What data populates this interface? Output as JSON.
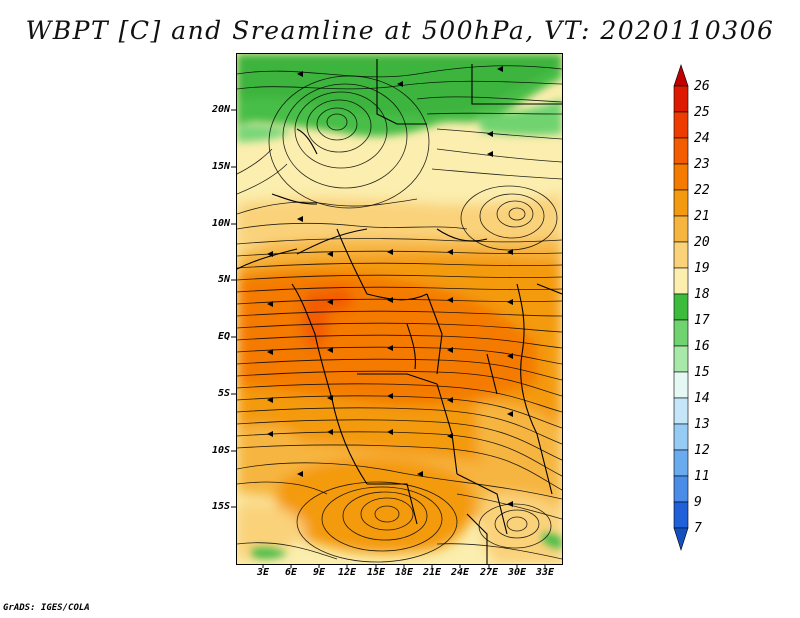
{
  "title": "WBPT [C] and Sreamline at 500hPa, VT: 2020110306",
  "credit": "GrADS: IGES/COLA",
  "lat_labels": [
    "20N",
    "15N",
    "10N",
    "5N",
    "EQ",
    "5S",
    "10S",
    "15S"
  ],
  "lon_labels": [
    "3E",
    "6E",
    "9E",
    "12E",
    "15E",
    "18E",
    "21E",
    "24E",
    "27E",
    "30E",
    "33E"
  ],
  "colorbar": {
    "labels": [
      "26",
      "25",
      "24",
      "23",
      "22",
      "21",
      "20",
      "19",
      "18",
      "17",
      "16",
      "15",
      "14",
      "13",
      "12",
      "11",
      "9",
      "7"
    ],
    "colors": [
      "#c00000",
      "#dd1a00",
      "#ee3c00",
      "#f35c00",
      "#f47a00",
      "#f49a10",
      "#f6b540",
      "#fad27a",
      "#fbeeae",
      "#3cbb3c",
      "#6fd36f",
      "#a8e8a8",
      "#e6f8f4",
      "#c4e6f8",
      "#96ccf4",
      "#6aaaee",
      "#4a8ce8",
      "#2060d8",
      "#1450c0"
    ]
  },
  "shading_colors": {
    "green_dark": "#46be46",
    "green_light": "#78d678",
    "cream": "#fbeeae",
    "yellow": "#fad27a",
    "orange_light": "#f6b540",
    "orange": "#f49a10",
    "orange_dark": "#f47a00",
    "red_orange": "#f35c00"
  }
}
